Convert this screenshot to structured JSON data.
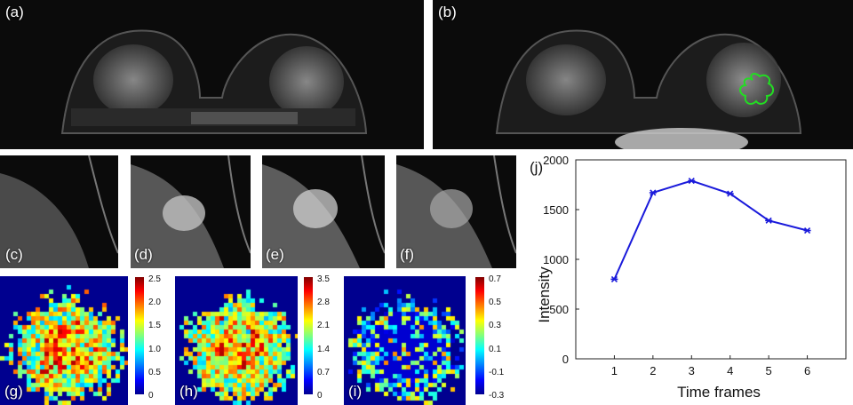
{
  "panels": {
    "a": "(a)",
    "b": "(b)",
    "c": "(c)",
    "d": "(d)",
    "e": "(e)",
    "f": "(f)",
    "g": "(g)",
    "h": "(h)",
    "i": "(i)",
    "j": "(j)"
  },
  "colorbars": {
    "g": [
      "2.5",
      "2.0",
      "1.5",
      "1.0",
      "0.5",
      "0"
    ],
    "h": [
      "3.5",
      "2.8",
      "2.1",
      "1.4",
      "0.7",
      "0"
    ],
    "i": [
      "0.7",
      "0.5",
      "0.3",
      "0.1",
      "-0.1",
      "-0.3"
    ]
  },
  "chart_data": {
    "type": "line",
    "xlabel": "Time frames",
    "ylabel": "Intensity",
    "x": [
      1,
      2,
      3,
      4,
      5,
      6
    ],
    "series": [
      {
        "values": [
          800,
          1670,
          1790,
          1660,
          1390,
          1290
        ]
      }
    ],
    "xlim": [
      0,
      7
    ],
    "ylim": [
      0,
      2000
    ],
    "xticks": [
      "1",
      "2",
      "3",
      "4",
      "5",
      "6"
    ],
    "yticks": [
      "0",
      "500",
      "1000",
      "1500",
      "2000"
    ],
    "line_color": "#1a1adb",
    "grid": false
  },
  "colors": {
    "roi_outline": "#22dd22"
  }
}
